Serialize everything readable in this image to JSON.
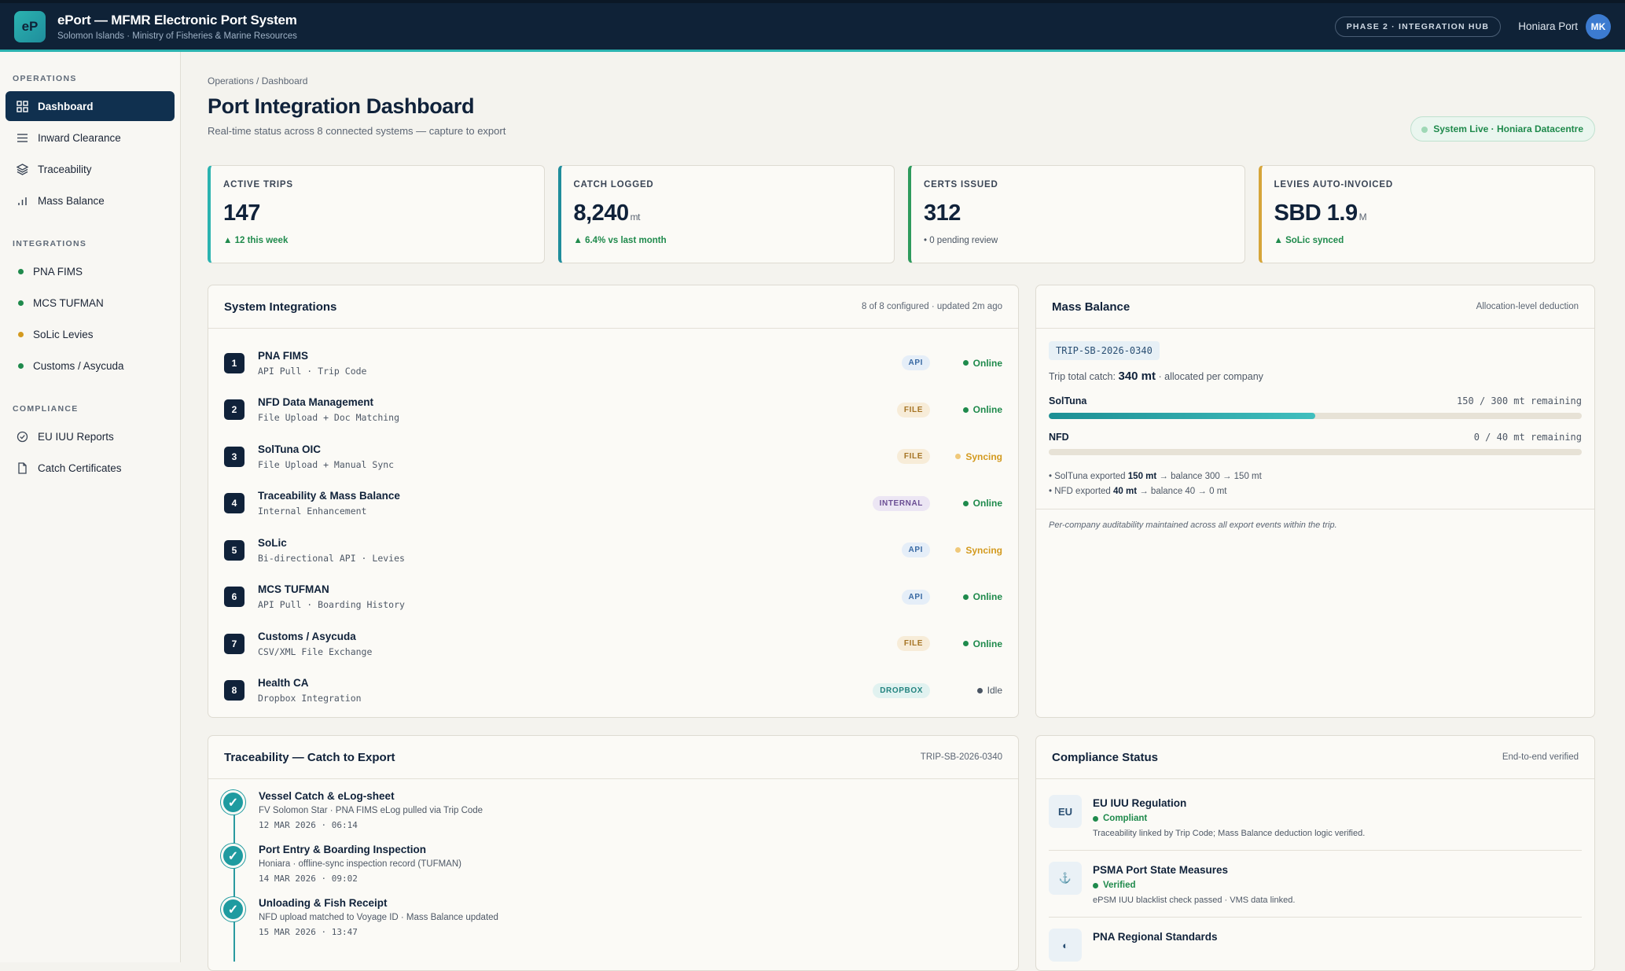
{
  "header": {
    "logo": "eP",
    "title": "ePort — MFMR Electronic Port System",
    "subtitle": "Solomon Islands · Ministry of Fisheries & Marine Resources",
    "phase": "PHASE 2 · INTEGRATION HUB",
    "port": "Honiara Port",
    "avatar": "MK"
  },
  "sidebar": {
    "operations_label": "OPERATIONS",
    "operations": [
      {
        "label": "Dashboard",
        "icon": "grid-icon"
      },
      {
        "label": "Inward Clearance",
        "icon": "list-icon"
      },
      {
        "label": "Traceability",
        "icon": "layers-icon"
      },
      {
        "label": "Mass Balance",
        "icon": "bar-chart-icon"
      }
    ],
    "integrations_label": "INTEGRATIONS",
    "integrations": [
      {
        "label": "PNA FIMS",
        "status_color": "#1f8a4c"
      },
      {
        "label": "MCS TUFMAN",
        "status_color": "#1f8a4c"
      },
      {
        "label": "SoLic Levies",
        "status_color": "#d39a1f"
      },
      {
        "label": "Customs / Asycuda",
        "status_color": "#1f8a4c"
      }
    ],
    "compliance_label": "COMPLIANCE",
    "compliance": [
      {
        "label": "EU IUU Reports",
        "icon": "check-circle-icon"
      },
      {
        "label": "Catch Certificates",
        "icon": "document-icon"
      }
    ]
  },
  "page": {
    "breadcrumb": "Operations / Dashboard",
    "title": "Port Integration Dashboard",
    "subtitle": "Real-time status across 8 connected systems — capture to export",
    "live": "System Live · Honiara Datacentre"
  },
  "kpis": [
    {
      "label": "ACTIVE TRIPS",
      "value": "147",
      "unit": "",
      "trend": "▲ 12 this week",
      "trend_kind": "up",
      "accent": "#2bb3b0"
    },
    {
      "label": "CATCH LOGGED",
      "value": "8,240",
      "unit": "mt",
      "trend": "▲ 6.4% vs last month",
      "trend_kind": "up",
      "accent": "#1f8d9c"
    },
    {
      "label": "CERTS ISSUED",
      "value": "312",
      "unit": "",
      "trend": "• 0 pending review",
      "trend_kind": "neutral",
      "accent": "#2e9a5c"
    },
    {
      "label": "LEVIES AUTO-INVOICED",
      "value": "SBD 1.9",
      "unit": "M",
      "trend": "▲ SoLic synced",
      "trend_kind": "up",
      "accent": "#d6a53a"
    }
  ],
  "integrations_panel": {
    "title": "System Integrations",
    "meta": "8 of 8 configured · updated 2m ago",
    "items": [
      {
        "num": "1",
        "name": "PNA FIMS",
        "desc": "API Pull · Trip Code",
        "type": "API",
        "status": "Online"
      },
      {
        "num": "2",
        "name": "NFD Data Management",
        "desc": "File Upload + Doc Matching",
        "type": "FILE",
        "status": "Online"
      },
      {
        "num": "3",
        "name": "SolTuna OIC",
        "desc": "File Upload + Manual Sync",
        "type": "FILE",
        "status": "Syncing"
      },
      {
        "num": "4",
        "name": "Traceability & Mass Balance",
        "desc": "Internal Enhancement",
        "type": "INTERNAL",
        "status": "Online"
      },
      {
        "num": "5",
        "name": "SoLic",
        "desc": "Bi-directional API · Levies",
        "type": "API",
        "status": "Syncing"
      },
      {
        "num": "6",
        "name": "MCS TUFMAN",
        "desc": "API Pull · Boarding History",
        "type": "API",
        "status": "Online"
      },
      {
        "num": "7",
        "name": "Customs / Asycuda",
        "desc": "CSV/XML File Exchange",
        "type": "FILE",
        "status": "Online"
      },
      {
        "num": "8",
        "name": "Health CA",
        "desc": "Dropbox Integration",
        "type": "DROPBOX",
        "status": "Idle"
      }
    ]
  },
  "mass_balance": {
    "title": "Mass Balance",
    "meta": "Allocation-level deduction",
    "trip": "TRIP-SB-2026-0340",
    "total_prefix": "Trip total catch:",
    "total_value": "340 mt",
    "total_suffix": "· allocated per company",
    "bars": [
      {
        "name": "SolTuna",
        "remaining": "150 / 300 mt remaining",
        "fraction": 0.5
      },
      {
        "name": "NFD",
        "remaining": "0 / 40 mt remaining",
        "fraction": 0
      }
    ],
    "notes": [
      {
        "pre": "• SolTuna exported ",
        "bold": "150 mt",
        "post": " → balance 300 → 150 mt"
      },
      {
        "pre": "• NFD exported ",
        "bold": "40 mt",
        "post": " → balance 40 → 0 mt"
      }
    ],
    "footer": "Per-company auditability maintained across all export events within the trip."
  },
  "traceability": {
    "title": "Traceability — Catch to Export",
    "meta": "TRIP-SB-2026-0340",
    "steps": [
      {
        "title": "Vessel Catch & eLog-sheet",
        "desc": "FV Solomon Star · PNA FIMS eLog pulled via Trip Code",
        "time": "12 MAR 2026 · 06:14"
      },
      {
        "title": "Port Entry & Boarding Inspection",
        "desc": "Honiara · offline-sync inspection record (TUFMAN)",
        "time": "14 MAR 2026 · 09:02"
      },
      {
        "title": "Unloading & Fish Receipt",
        "desc": "NFD upload matched to Voyage ID · Mass Balance updated",
        "time": "15 MAR 2026 · 13:47"
      }
    ]
  },
  "compliance": {
    "title": "Compliance Status",
    "meta": "End-to-end verified",
    "items": [
      {
        "icon": "EU",
        "title": "EU IUU Regulation",
        "status": "Compliant",
        "desc": "Traceability linked by Trip Code; Mass Balance deduction logic verified."
      },
      {
        "icon": "⚓",
        "title": "PSMA Port State Measures",
        "status": "Verified",
        "desc": "ePSM IUU blacklist check passed · VMS data linked."
      },
      {
        "icon": "◐",
        "title": "PNA Regional Standards",
        "status": "",
        "desc": ""
      }
    ]
  }
}
